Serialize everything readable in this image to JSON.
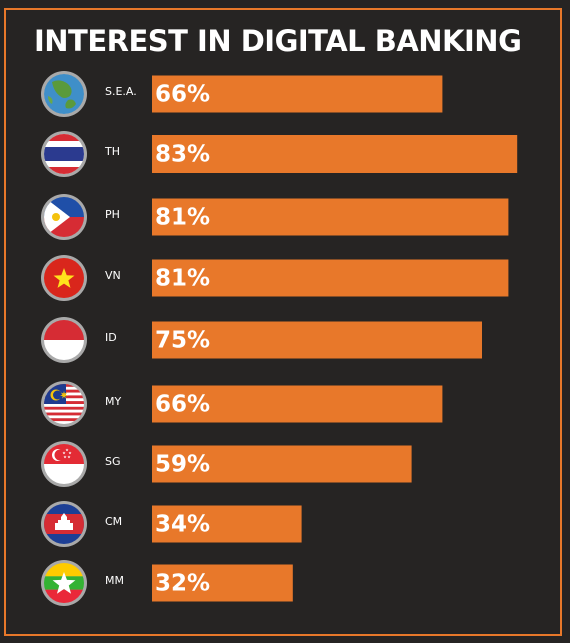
{
  "chart_data": {
    "type": "bar",
    "orientation": "horizontal",
    "title": "INTEREST IN DIGITAL BANKING",
    "categories": [
      "S.E.A.",
      "TH",
      "PH",
      "VN",
      "ID",
      "MY",
      "SG",
      "CM",
      "MM"
    ],
    "values": [
      66,
      83,
      81,
      81,
      75,
      66,
      59,
      34,
      32
    ],
    "data_labels": [
      "66%",
      "83%",
      "81%",
      "81%",
      "75%",
      "66%",
      "59%",
      "34%",
      "32%"
    ],
    "flag_icons": [
      "globe-icon",
      "thailand-flag-icon",
      "philippines-flag-icon",
      "vietnam-flag-icon",
      "indonesia-flag-icon",
      "malaysia-flag-icon",
      "singapore-flag-icon",
      "cambodia-flag-icon",
      "myanmar-flag-icon"
    ],
    "bar_color": "#e8782a",
    "background_color": "#262423",
    "title_color": "#ffffff",
    "grid": false,
    "legend": "none"
  }
}
